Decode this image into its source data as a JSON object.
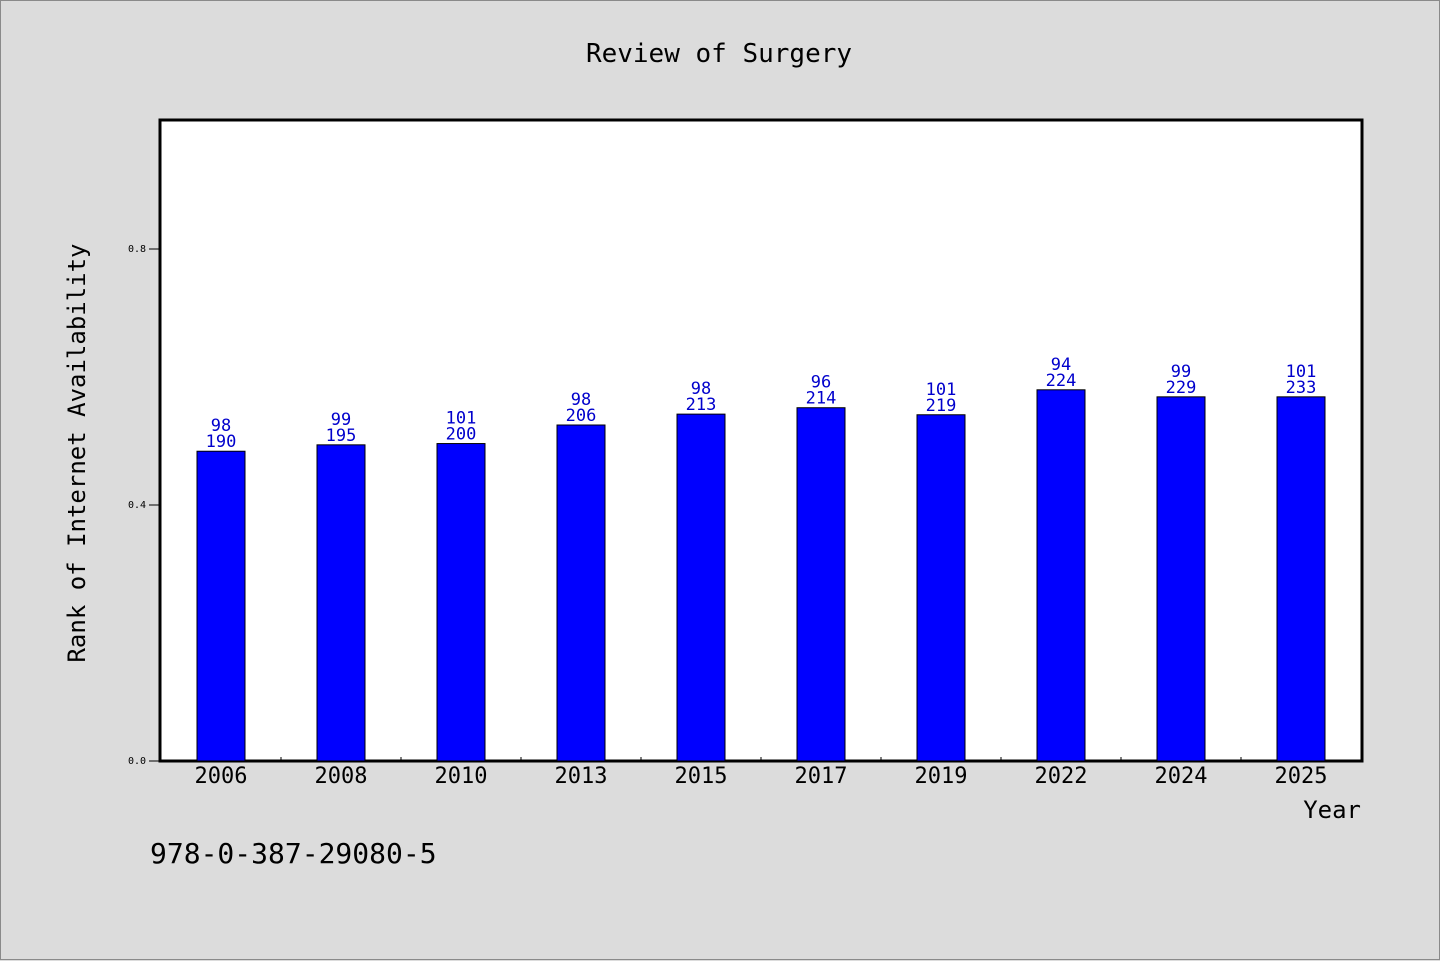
{
  "chart_data": {
    "type": "bar",
    "title": "Review of Surgery",
    "xlabel": "Year",
    "ylabel": "Rank of Internet Availability",
    "categories": [
      "2006",
      "2008",
      "2010",
      "2013",
      "2015",
      "2017",
      "2019",
      "2022",
      "2024",
      "2025"
    ],
    "series": [
      {
        "values": [
          0.484,
          0.494,
          0.496,
          0.525,
          0.542,
          0.552,
          0.541,
          0.58,
          0.569,
          0.569
        ]
      }
    ],
    "annotations": {
      "top_line": [
        "98",
        "99",
        "101",
        "98",
        "98",
        "96",
        "101",
        "94",
        "99",
        "101"
      ],
      "bottom_line": [
        "190",
        "195",
        "200",
        "206",
        "213",
        "214",
        "219",
        "224",
        "229",
        "233"
      ]
    },
    "yticks": [
      "0.0",
      "0.4",
      "0.8"
    ],
    "ytick_values": [
      0.0,
      0.4,
      0.8
    ],
    "ylim": [
      0.0,
      1.0
    ],
    "grid": false,
    "bar_color": "#0000ff",
    "label_color": "#0000cc"
  },
  "footer": {
    "isbn": "978-0-387-29080-5"
  }
}
